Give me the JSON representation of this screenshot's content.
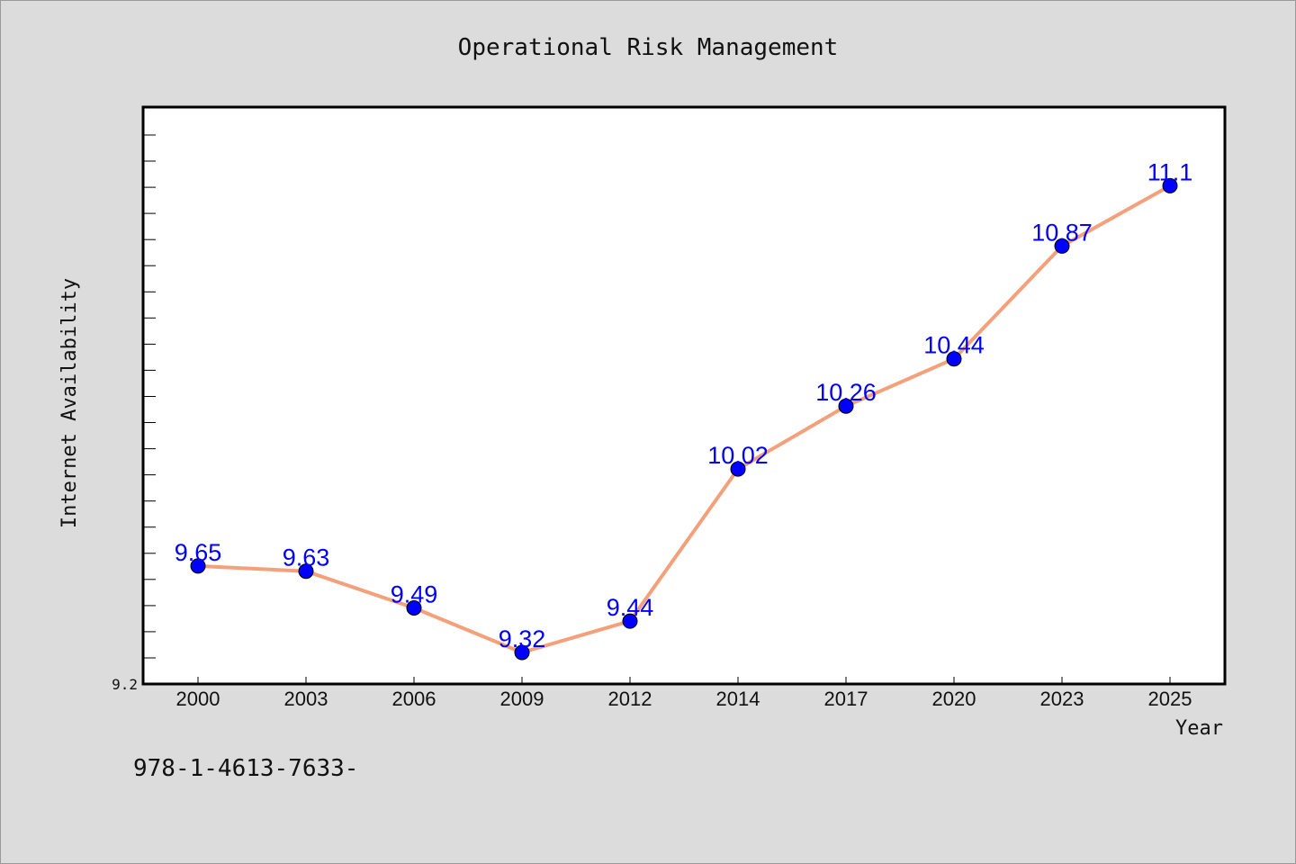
{
  "chart_data": {
    "type": "line",
    "title": "Operational Risk Management",
    "xlabel": "Year",
    "ylabel": "Internet Availability",
    "categories": [
      "2000",
      "2003",
      "2006",
      "2009",
      "2012",
      "2014",
      "2017",
      "2020",
      "2023",
      "2025"
    ],
    "series": [
      {
        "values": [
          9.65,
          9.63,
          9.49,
          9.32,
          9.44,
          10.02,
          10.26,
          10.44,
          10.87,
          11.1
        ]
      }
    ],
    "data_labels": [
      "9.65",
      "9.63",
      "9.49",
      "9.32",
      "9.44",
      "10.02",
      "10.26",
      "10.44",
      "10.87",
      "11.1"
    ],
    "ylim": [
      9.2,
      11.4
    ],
    "ytick_labels": [
      "9.2"
    ],
    "grid": false,
    "line_color": "#f4a07a",
    "marker_color": "#0000ff",
    "label_color": "#0000ff"
  },
  "footer_text": "978-1-4613-7633-"
}
